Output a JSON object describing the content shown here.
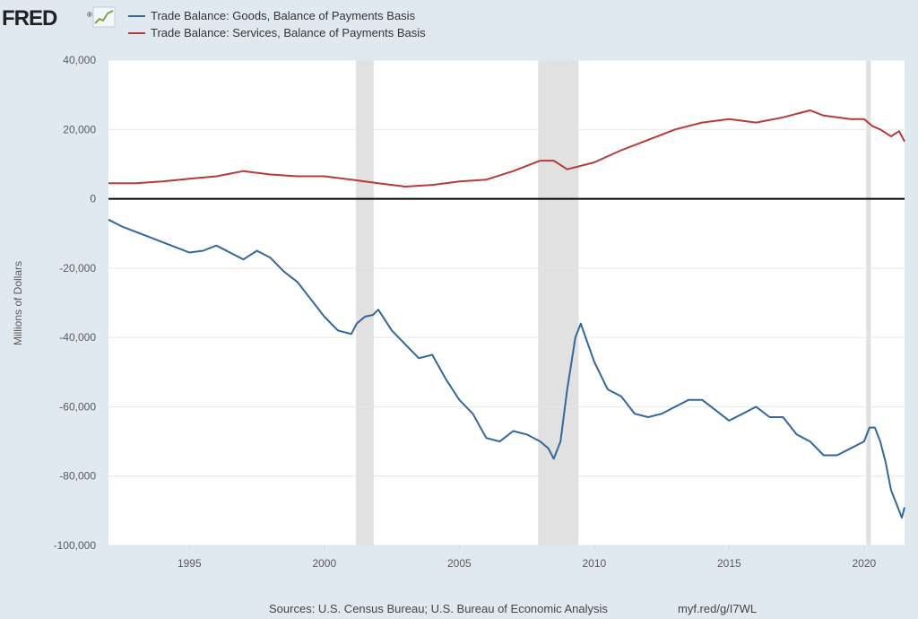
{
  "brand": {
    "logo_text": "FRED",
    "logo_mark": "®"
  },
  "footer": {
    "sources": "Sources: U.S. Census Bureau; U.S. Bureau of Economic Analysis",
    "short_url": "myf.red/g/I7WL"
  },
  "colors": {
    "page_background": "#e1e9f0",
    "plot_background": "#ffffff",
    "goods": "#33679c",
    "services": "#b73a3a",
    "recession": "#e1e1e1",
    "zero_line": "#000000",
    "grid": "#e6e6e6"
  },
  "chart_data": {
    "type": "line",
    "title": "",
    "xlabel": "",
    "ylabel": "Millions of Dollars",
    "xlim": [
      1992.0,
      2021.5
    ],
    "ylim": [
      -100000,
      40000
    ],
    "y_ticks": [
      -100000,
      -80000,
      -60000,
      -40000,
      -20000,
      0,
      20000,
      40000
    ],
    "y_tick_labels": [
      "-100,000",
      "-80,000",
      "-60,000",
      "-40,000",
      "-20,000",
      "0",
      "20,000",
      "40,000"
    ],
    "x_ticks": [
      1995,
      2000,
      2005,
      2010,
      2015,
      2020
    ],
    "x_tick_labels": [
      "1995",
      "2000",
      "2005",
      "2010",
      "2015",
      "2020"
    ],
    "grid": true,
    "legend_position": "top-left",
    "zero_line": true,
    "recessions": [
      [
        2001.17,
        2001.83
      ],
      [
        2007.92,
        2009.42
      ],
      [
        2020.08,
        2020.25
      ]
    ],
    "series": [
      {
        "name": "Trade Balance: Goods, Balance of Payments Basis",
        "x": [
          1992.0,
          1992.5,
          1993.0,
          1993.5,
          1994.0,
          1994.5,
          1995.0,
          1995.5,
          1996.0,
          1996.5,
          1997.0,
          1997.5,
          1998.0,
          1998.5,
          1999.0,
          1999.5,
          2000.0,
          2000.5,
          2001.0,
          2001.2,
          2001.5,
          2001.8,
          2002.0,
          2002.5,
          2003.0,
          2003.5,
          2004.0,
          2004.5,
          2005.0,
          2005.5,
          2006.0,
          2006.5,
          2007.0,
          2007.5,
          2008.0,
          2008.3,
          2008.5,
          2008.75,
          2009.0,
          2009.3,
          2009.5,
          2010.0,
          2010.5,
          2011.0,
          2011.5,
          2012.0,
          2012.5,
          2013.0,
          2013.5,
          2014.0,
          2014.5,
          2015.0,
          2015.5,
          2016.0,
          2016.5,
          2017.0,
          2017.5,
          2018.0,
          2018.5,
          2019.0,
          2019.5,
          2020.0,
          2020.2,
          2020.4,
          2020.6,
          2020.8,
          2021.0,
          2021.2,
          2021.4,
          2021.5
        ],
        "y": [
          -6000,
          -8000,
          -9500,
          -11000,
          -12500,
          -14000,
          -15500,
          -15000,
          -13500,
          -15500,
          -17500,
          -15000,
          -17000,
          -21000,
          -24000,
          -29000,
          -34000,
          -38000,
          -39000,
          -36000,
          -34000,
          -33500,
          -32000,
          -38000,
          -42000,
          -46000,
          -45000,
          -52000,
          -58000,
          -62000,
          -69000,
          -70000,
          -67000,
          -68000,
          -70000,
          -72000,
          -75000,
          -70000,
          -55000,
          -40000,
          -36000,
          -47000,
          -55000,
          -57000,
          -62000,
          -63000,
          -62000,
          -60000,
          -58000,
          -58000,
          -61000,
          -64000,
          -62000,
          -60000,
          -63000,
          -63000,
          -68000,
          -70000,
          -74000,
          -74000,
          -72000,
          -70000,
          -66000,
          -66000,
          -70000,
          -76000,
          -84000,
          -88000,
          -92000,
          -89000
        ]
      },
      {
        "name": "Trade Balance: Services, Balance of Payments Basis",
        "x": [
          1992.0,
          1993.0,
          1994.0,
          1995.0,
          1996.0,
          1997.0,
          1998.0,
          1999.0,
          2000.0,
          2001.0,
          2002.0,
          2003.0,
          2004.0,
          2005.0,
          2006.0,
          2007.0,
          2008.0,
          2008.5,
          2009.0,
          2009.5,
          2010.0,
          2011.0,
          2012.0,
          2013.0,
          2014.0,
          2015.0,
          2016.0,
          2017.0,
          2018.0,
          2018.5,
          2019.0,
          2019.5,
          2020.0,
          2020.3,
          2020.6,
          2021.0,
          2021.3,
          2021.5
        ],
        "y": [
          4500,
          4500,
          5000,
          5800,
          6500,
          8000,
          7000,
          6500,
          6500,
          5500,
          4500,
          3500,
          4000,
          5000,
          5500,
          8000,
          11000,
          11000,
          8500,
          9500,
          10500,
          14000,
          17000,
          20000,
          22000,
          23000,
          22000,
          23500,
          25500,
          24000,
          23500,
          23000,
          23000,
          21000,
          20000,
          18000,
          19500,
          16500
        ]
      }
    ]
  }
}
